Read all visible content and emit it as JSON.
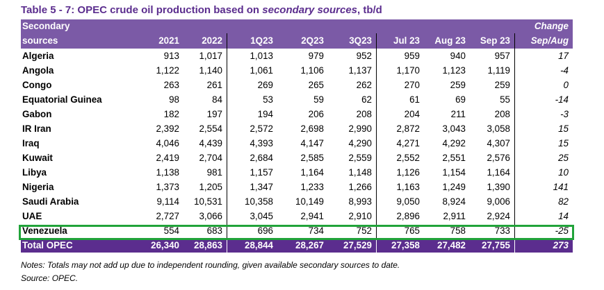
{
  "title": {
    "prefix": "Table 5 - 7: OPEC crude oil production based on ",
    "emphasis": "secondary sources",
    "suffix": ", tb/d"
  },
  "header": {
    "col0_line1": "Secondary",
    "col0_line2": "sources",
    "change_line1": "Change",
    "change_line2": "Sep/Aug",
    "periods": [
      "2021",
      "2022",
      "1Q23",
      "2Q23",
      "3Q23",
      "Jul 23",
      "Aug 23",
      "Sep 23"
    ]
  },
  "rows": [
    {
      "name": "Algeria",
      "values": [
        "913",
        "1,017",
        "1,013",
        "979",
        "952",
        "959",
        "940",
        "957"
      ],
      "change": "17"
    },
    {
      "name": "Angola",
      "values": [
        "1,122",
        "1,140",
        "1,061",
        "1,106",
        "1,137",
        "1,170",
        "1,123",
        "1,119"
      ],
      "change": "-4"
    },
    {
      "name": "Congo",
      "values": [
        "263",
        "261",
        "269",
        "265",
        "262",
        "270",
        "259",
        "259"
      ],
      "change": "0"
    },
    {
      "name": "Equatorial Guinea",
      "values": [
        "98",
        "84",
        "53",
        "59",
        "62",
        "61",
        "69",
        "55"
      ],
      "change": "-14"
    },
    {
      "name": "Gabon",
      "values": [
        "182",
        "197",
        "194",
        "206",
        "208",
        "204",
        "211",
        "208"
      ],
      "change": "-3"
    },
    {
      "name": "IR Iran",
      "values": [
        "2,392",
        "2,554",
        "2,572",
        "2,698",
        "2,990",
        "2,872",
        "3,043",
        "3,058"
      ],
      "change": "15"
    },
    {
      "name": "Iraq",
      "values": [
        "4,046",
        "4,439",
        "4,393",
        "4,147",
        "4,290",
        "4,271",
        "4,292",
        "4,307"
      ],
      "change": "15"
    },
    {
      "name": "Kuwait",
      "values": [
        "2,419",
        "2,704",
        "2,684",
        "2,585",
        "2,559",
        "2,552",
        "2,551",
        "2,576"
      ],
      "change": "25"
    },
    {
      "name": "Libya",
      "values": [
        "1,138",
        "981",
        "1,157",
        "1,164",
        "1,148",
        "1,126",
        "1,154",
        "1,164"
      ],
      "change": "10"
    },
    {
      "name": "Nigeria",
      "values": [
        "1,373",
        "1,205",
        "1,347",
        "1,233",
        "1,266",
        "1,163",
        "1,249",
        "1,390"
      ],
      "change": "141"
    },
    {
      "name": "Saudi Arabia",
      "values": [
        "9,114",
        "10,531",
        "10,358",
        "10,149",
        "8,993",
        "9,050",
        "8,924",
        "9,006"
      ],
      "change": "82"
    },
    {
      "name": "UAE",
      "values": [
        "2,727",
        "3,066",
        "3,045",
        "2,941",
        "2,910",
        "2,896",
        "2,911",
        "2,924"
      ],
      "change": "14"
    },
    {
      "name": "Venezuela",
      "values": [
        "554",
        "683",
        "696",
        "734",
        "752",
        "765",
        "758",
        "733"
      ],
      "change": "-25"
    }
  ],
  "total": {
    "name": "Total  OPEC",
    "values": [
      "26,340",
      "28,863",
      "28,844",
      "28,267",
      "27,529",
      "27,358",
      "27,482",
      "27,755"
    ],
    "change": "273"
  },
  "notes": {
    "line1": "Notes: Totals may not add up due to independent rounding, given available secondary sources to date.",
    "line2": "Source: OPEC."
  },
  "colors": {
    "header_bg": "#7b5aa6",
    "total_bg": "#5b2d8e",
    "title_color": "#5b2d8e",
    "highlight_border": "#21a33a"
  }
}
